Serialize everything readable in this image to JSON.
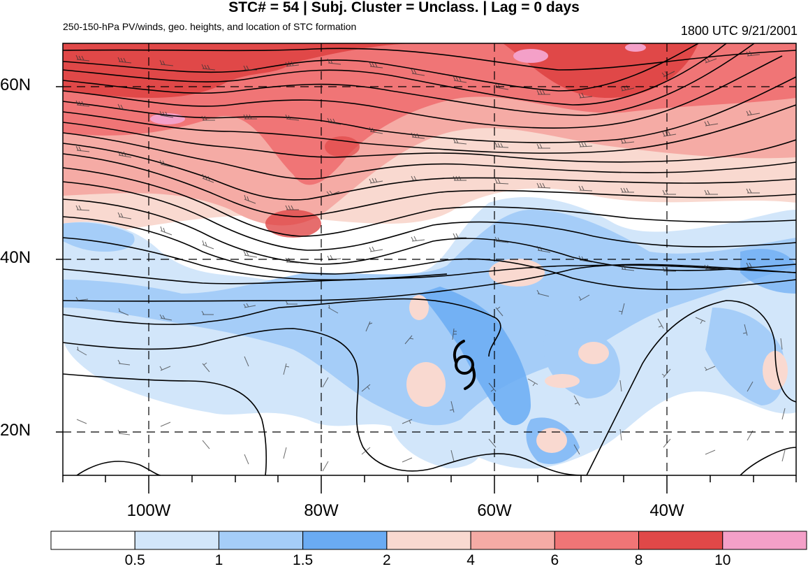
{
  "header": {
    "title": "STC# = 54 | Subj. Cluster = Unclass. | Lag = 0 days",
    "subtitle": "250-150-hPa PV/winds, geo. heights, and location of STC formation",
    "timestamp": "1800 UTC  9/21/2001"
  },
  "map": {
    "lat_labels": [
      "60N",
      "40N",
      "20N"
    ],
    "lon_labels": [
      "100W",
      "80W",
      "60W",
      "40W"
    ],
    "lat_range": [
      15,
      65
    ],
    "lon_range": [
      -110,
      -25
    ],
    "storm_marker": {
      "lon": -64,
      "lat": 28,
      "icon": "tropical-cyclone-icon"
    }
  },
  "colorbar": {
    "labels": [
      "0.5",
      "1",
      "1.5",
      "2",
      "4",
      "6",
      "8",
      "10"
    ],
    "colors": [
      "#ffffff",
      "#d2e6fa",
      "#a5cdf8",
      "#6aabf3",
      "#f9d9d0",
      "#f5aba5",
      "#f07576",
      "#e04848",
      "#f4a0c8"
    ]
  }
}
